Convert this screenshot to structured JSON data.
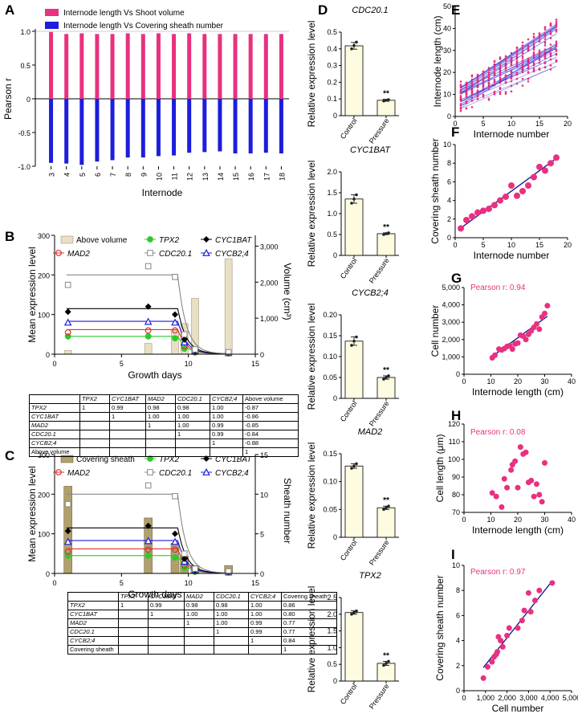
{
  "panel_labels": {
    "A": "A",
    "B": "B",
    "C": "C",
    "D": "D",
    "E": "E",
    "F": "F",
    "G": "G",
    "H": "H",
    "I": "I"
  },
  "colors": {
    "pink": "#e8317f",
    "blue": "#1d1ddc",
    "beige": "#e8dfc4",
    "khaki": "#b0a06e",
    "green": "#2fc82f",
    "red": "#e03030",
    "gray": "#888888",
    "bar_fill": "#fdfbe0",
    "navy": "#1b1b9a"
  },
  "panel_a": {
    "legend": [
      "Internode length Vs Shoot volume",
      "Internode length Vs Covering sheath number"
    ],
    "ylabel": "Pearson r",
    "xlabel": "Internode",
    "yticks": [
      "1.0",
      "0.5",
      "0",
      "-0.5",
      "-1.0"
    ],
    "internodes": [
      "3",
      "4",
      "5",
      "6",
      "7",
      "8",
      "9",
      "10",
      "11",
      "12",
      "13",
      "14",
      "15",
      "16",
      "17",
      "18"
    ]
  },
  "panel_b": {
    "ylabel": "Mean expression level",
    "ylabel2": "Volume (cm³)",
    "xlabel": "Growth days",
    "xticks": [
      "0",
      "5",
      "10",
      "15"
    ],
    "yticks": [
      "0",
      "100",
      "200",
      "300"
    ],
    "y2ticks": [
      "0",
      "1,000",
      "2,000",
      "3,000"
    ],
    "legend": {
      "bar": "Above volume",
      "tpx2": "TPX2",
      "cyc1bat": "CYC1BAT",
      "mad2": "MAD2",
      "cdc20": "CDC20.1",
      "cycb24": "CYCB2;4"
    },
    "table": {
      "header": [
        "",
        "TPX2",
        "CYC1BAT",
        "MAD2",
        "CDC20.1",
        "CYCB2;4",
        "Above volume"
      ],
      "rows": [
        [
          "TPX2",
          "1",
          "0.99",
          "0.98",
          "0.98",
          "1.00",
          "-0.87"
        ],
        [
          "CYC1BAT",
          "",
          "1",
          "1.00",
          "1.00",
          "1.00",
          "-0.86"
        ],
        [
          "MAD2",
          "",
          "",
          "1",
          "1.00",
          "0.99",
          "-0.85"
        ],
        [
          "CDC20.1",
          "",
          "",
          "",
          "1",
          "0.99",
          "-0.84"
        ],
        [
          "CYCB2;4",
          "",
          "",
          "",
          "",
          "1",
          "-0.88"
        ],
        [
          "Above volume",
          "",
          "",
          "",
          "",
          "",
          "1"
        ]
      ]
    }
  },
  "panel_c": {
    "ylabel": "Mean expression level",
    "ylabel2": "Sheath number",
    "xlabel": "Growth days",
    "xticks": [
      "0",
      "5",
      "10",
      "15"
    ],
    "yticks": [
      "0",
      "100",
      "200",
      "300"
    ],
    "y2ticks": [
      "0",
      "5",
      "10",
      "15"
    ],
    "legend": {
      "bar": "Covering sheath",
      "tpx2": "TPX2",
      "cyc1bat": "CYC1BAT",
      "mad2": "MAD2",
      "cdc20": "CDC20.1",
      "cycb24": "CYCB2;4"
    },
    "table": {
      "header": [
        "",
        "TPX2",
        "CYC1BAT",
        "MAD2",
        "CDC20.1",
        "CYCB2;4",
        "Covering sheath"
      ],
      "rows": [
        [
          "TPX2",
          "1",
          "0.99",
          "0.98",
          "0.98",
          "1.00",
          "0.86"
        ],
        [
          "CYC1BAT",
          "",
          "1",
          "1.00",
          "1.00",
          "1.00",
          "0.80"
        ],
        [
          "MAD2",
          "",
          "",
          "1",
          "1.00",
          "0.99",
          "0.77"
        ],
        [
          "CDC20.1",
          "",
          "",
          "",
          "1",
          "0.99",
          "0.77"
        ],
        [
          "CYCB2;4",
          "",
          "",
          "",
          "",
          "1",
          "0.84"
        ],
        [
          "Covering sheath",
          "",
          "",
          "",
          "",
          "",
          "1"
        ]
      ]
    }
  },
  "panel_d": {
    "ylabel": "Relative expression level",
    "categories": [
      "Control",
      "Pressure"
    ],
    "significance": "**",
    "subplots": [
      {
        "title": "CDC20.1",
        "yticks": [
          "0",
          "0.1",
          "0.2",
          "0.3",
          "0.4",
          "0.5"
        ]
      },
      {
        "title": "CYC1BAT",
        "yticks": [
          "0",
          "0.5",
          "1.0",
          "1.5",
          "2.0"
        ]
      },
      {
        "title": "CYCB2;4",
        "yticks": [
          "0",
          "0.05",
          "0.10",
          "0.15",
          "0.20"
        ]
      },
      {
        "title": "MAD2",
        "yticks": [
          "0",
          "0.05",
          "0.10",
          "0.15"
        ]
      },
      {
        "title": "TPX2",
        "yticks": [
          "0",
          "0.5",
          "1.0",
          "1.5",
          "2.0",
          "2.5"
        ]
      }
    ]
  },
  "panel_e": {
    "ylabel": "Internode length (cm)",
    "xlabel": "Internode number",
    "xticks": [
      "0",
      "5",
      "10",
      "15",
      "20"
    ],
    "yticks": [
      "0",
      "10",
      "20",
      "30",
      "40",
      "50"
    ]
  },
  "panel_f": {
    "ylabel": "Covering sheath number",
    "xlabel": "Internode number",
    "xticks": [
      "0",
      "5",
      "10",
      "15",
      "20"
    ],
    "yticks": [
      "0",
      "2",
      "4",
      "6",
      "8",
      "10"
    ]
  },
  "panel_g": {
    "ylabel": "Cell number",
    "xlabel": "Internode length (cm)",
    "annotation": "Pearson r: 0.94",
    "xticks": [
      "0",
      "10",
      "20",
      "30",
      "40"
    ],
    "yticks": [
      "0",
      "1,000",
      "2,000",
      "3,000",
      "4,000",
      "5,000"
    ]
  },
  "panel_h": {
    "ylabel": "Cell length (μm)",
    "xlabel": "Internode length (cm)",
    "annotation": "Pearson r: 0.08",
    "xticks": [
      "0",
      "10",
      "20",
      "30",
      "40"
    ],
    "yticks": [
      "70",
      "80",
      "90",
      "100",
      "110",
      "120"
    ]
  },
  "panel_i": {
    "ylabel": "Covering sheath number",
    "xlabel": "Cell number",
    "annotation": "Pearson r: 0.97",
    "xticks": [
      "0",
      "1,000",
      "2,000",
      "3,000",
      "4,000",
      "5,000"
    ],
    "yticks": [
      "0",
      "2",
      "4",
      "6",
      "8",
      "10"
    ]
  },
  "chart_data": [
    {
      "panel": "A",
      "type": "bar",
      "title": "",
      "xlabel": "Internode",
      "ylabel": "Pearson r",
      "ylim": [
        -1.0,
        1.0
      ],
      "categories": [
        "3",
        "4",
        "5",
        "6",
        "7",
        "8",
        "9",
        "10",
        "11",
        "12",
        "13",
        "14",
        "15",
        "16",
        "17",
        "18"
      ],
      "series": [
        {
          "name": "Internode length Vs Shoot volume",
          "values": [
            0.99,
            0.96,
            0.97,
            0.96,
            0.96,
            0.97,
            0.96,
            0.97,
            0.96,
            0.97,
            0.96,
            0.96,
            0.96,
            0.96,
            0.96,
            0.96
          ]
        },
        {
          "name": "Internode length Vs Covering sheath number",
          "values": [
            -0.95,
            -0.96,
            -0.98,
            -0.93,
            -0.91,
            -0.87,
            -0.87,
            -0.85,
            -0.84,
            -0.8,
            -0.79,
            -0.78,
            -0.81,
            -0.81,
            -0.8,
            -0.81
          ]
        }
      ]
    },
    {
      "panel": "B",
      "type": "line",
      "xlabel": "Growth days",
      "ylabel": "Mean expression level",
      "y2label": "Volume (cm³)",
      "xlim": [
        0,
        15
      ],
      "ylim": [
        0,
        300
      ],
      "y2lim": [
        0,
        3300
      ],
      "bars": {
        "name": "Above volume",
        "x": [
          1,
          7,
          9,
          9.7,
          10.5,
          13
        ],
        "values": [
          100,
          300,
          650,
          850,
          1550,
          2650
        ]
      },
      "series": [
        {
          "name": "TPX2",
          "x": [
            1,
            7,
            9,
            9.7,
            10.5,
            13
          ],
          "values": [
            45,
            45,
            40,
            14,
            4,
            2
          ],
          "plateau": 45
        },
        {
          "name": "MAD2",
          "x": [
            1,
            7,
            9,
            9.7,
            10.5,
            13
          ],
          "values": [
            55,
            60,
            60,
            20,
            6,
            3
          ],
          "plateau": 62
        },
        {
          "name": "CYCB2;4",
          "x": [
            1,
            7,
            9,
            9.7,
            10.5,
            13
          ],
          "values": [
            80,
            82,
            80,
            30,
            8,
            3
          ],
          "plateau": 83
        },
        {
          "name": "CYC1BAT",
          "x": [
            1,
            7,
            9,
            9.7,
            10.5,
            13
          ],
          "values": [
            107,
            120,
            100,
            37,
            8,
            3
          ],
          "plateau": 115
        },
        {
          "name": "CDC20.1",
          "x": [
            1,
            7,
            9,
            9.7,
            10.5,
            13
          ],
          "values": [
            175,
            222,
            195,
            50,
            12,
            5
          ],
          "plateau": 200
        }
      ]
    },
    {
      "panel": "C",
      "type": "line",
      "xlabel": "Growth days",
      "ylabel": "Mean expression level",
      "y2label": "Sheath number",
      "xlim": [
        0,
        15
      ],
      "ylim": [
        0,
        300
      ],
      "y2lim": [
        0,
        15
      ],
      "bars": {
        "name": "Covering sheath",
        "x": [
          1,
          7,
          9,
          9.7,
          10.5,
          13
        ],
        "values": [
          11,
          7,
          3.8,
          2.2,
          1,
          1
        ]
      },
      "series": [
        {
          "name": "TPX2",
          "x": [
            1,
            7,
            9,
            9.7,
            10.5,
            13
          ],
          "values": [
            45,
            45,
            40,
            14,
            4,
            2
          ],
          "plateau": 45
        },
        {
          "name": "MAD2",
          "x": [
            1,
            7,
            9,
            9.7,
            10.5,
            13
          ],
          "values": [
            55,
            60,
            60,
            20,
            6,
            3
          ],
          "plateau": 62
        },
        {
          "name": "CYCB2;4",
          "x": [
            1,
            7,
            9,
            9.7,
            10.5,
            13
          ],
          "values": [
            80,
            82,
            80,
            30,
            8,
            3
          ],
          "plateau": 83
        },
        {
          "name": "CYC1BAT",
          "x": [
            1,
            7,
            9,
            9.7,
            10.5,
            13
          ],
          "values": [
            107,
            120,
            100,
            37,
            8,
            3
          ],
          "plateau": 115
        },
        {
          "name": "CDC20.1",
          "x": [
            1,
            7,
            9,
            9.7,
            10.5,
            13
          ],
          "values": [
            175,
            222,
            195,
            50,
            12,
            5
          ],
          "plateau": 200
        }
      ]
    },
    {
      "panel": "D1",
      "type": "bar",
      "title": "CDC20.1",
      "categories": [
        "Control",
        "Pressure"
      ],
      "values": [
        0.418,
        0.092
      ],
      "errors": [
        0.02,
        0.006
      ],
      "points": [
        [
          0.4,
          0.42,
          0.44
        ],
        [
          0.088,
          0.092,
          0.096
        ]
      ],
      "ylim": [
        0,
        0.5
      ]
    },
    {
      "panel": "D2",
      "type": "bar",
      "title": "CYC1BAT",
      "categories": [
        "Control",
        "Pressure"
      ],
      "values": [
        1.35,
        0.52
      ],
      "errors": [
        0.1,
        0.02
      ],
      "points": [
        [
          1.25,
          1.35,
          1.45
        ],
        [
          0.5,
          0.52,
          0.54
        ]
      ],
      "ylim": [
        0,
        2.0
      ]
    },
    {
      "panel": "D3",
      "type": "bar",
      "title": "CYCB2;4",
      "categories": [
        "Control",
        "Pressure"
      ],
      "values": [
        0.137,
        0.05
      ],
      "errors": [
        0.01,
        0.004
      ],
      "points": [
        [
          0.127,
          0.137,
          0.147
        ],
        [
          0.046,
          0.05,
          0.054
        ]
      ],
      "ylim": [
        0,
        0.2
      ]
    },
    {
      "panel": "D4",
      "type": "bar",
      "title": "MAD2",
      "categories": [
        "Control",
        "Pressure"
      ],
      "values": [
        0.128,
        0.053
      ],
      "errors": [
        0.004,
        0.003
      ],
      "points": [
        [
          0.124,
          0.128,
          0.132
        ],
        [
          0.05,
          0.053,
          0.056
        ]
      ],
      "ylim": [
        0,
        0.15
      ]
    },
    {
      "panel": "D5",
      "type": "bar",
      "title": "TPX2",
      "categories": [
        "Control",
        "Pressure"
      ],
      "values": [
        2.05,
        0.53
      ],
      "errors": [
        0.05,
        0.06
      ],
      "points": [
        [
          2.0,
          2.05,
          2.1
        ],
        [
          0.47,
          0.53,
          0.59
        ]
      ],
      "ylim": [
        0,
        2.5
      ]
    },
    {
      "panel": "E",
      "type": "scatter",
      "xlabel": "Internode number",
      "ylabel": "Internode length (cm)",
      "xlim": [
        0,
        20
      ],
      "ylim": [
        0,
        50
      ],
      "n_shoots": 25,
      "x_range": [
        1,
        18
      ],
      "fit_intercept_range": [
        2,
        12
      ],
      "fit_slope_range": [
        1.0,
        1.8
      ]
    },
    {
      "panel": "F",
      "type": "scatter",
      "xlabel": "Internode number",
      "ylabel": "Covering sheath number",
      "xlim": [
        0,
        20
      ],
      "ylim": [
        0,
        10
      ],
      "x": [
        1,
        2,
        3,
        4,
        5,
        6,
        7,
        8,
        9,
        10,
        11,
        12,
        13,
        14,
        15,
        16,
        17,
        18
      ],
      "y": [
        1.0,
        1.9,
        2.3,
        2.7,
        2.9,
        3.1,
        3.5,
        4.0,
        4.4,
        5.6,
        4.5,
        5.0,
        5.6,
        6.5,
        7.6,
        7.2,
        8.0,
        8.6
      ],
      "fit": {
        "slope": 0.44,
        "intercept": 0.6
      }
    },
    {
      "panel": "G",
      "type": "scatter",
      "xlabel": "Internode length (cm)",
      "ylabel": "Cell number",
      "xlim": [
        0,
        40
      ],
      "ylim": [
        0,
        5000
      ],
      "annotation": "Pearson r: 0.94",
      "x": [
        10.5,
        11.5,
        13,
        14,
        15,
        16,
        17,
        18,
        19,
        20,
        21,
        22,
        23,
        24,
        25,
        26,
        27,
        28,
        29,
        30,
        31
      ],
      "y": [
        950,
        1100,
        1450,
        1400,
        1480,
        1600,
        1650,
        1450,
        1750,
        1800,
        2250,
        2200,
        2000,
        2300,
        2500,
        2700,
        2900,
        2600,
        3300,
        3500,
        3950
      ],
      "fit": {
        "slope": 113,
        "intercept": -160
      }
    },
    {
      "panel": "H",
      "type": "scatter",
      "xlabel": "Internode length (cm)",
      "ylabel": "Cell length (μm)",
      "xlim": [
        0,
        40
      ],
      "ylim": [
        70,
        120
      ],
      "annotation": "Pearson r: 0.08",
      "x": [
        10.5,
        12,
        14,
        15,
        16,
        17.5,
        18,
        19,
        20,
        21,
        22,
        23,
        24,
        25,
        26,
        27,
        28,
        29,
        30
      ],
      "y": [
        81,
        79,
        73,
        89,
        84,
        94,
        97,
        99,
        84,
        107,
        103,
        104,
        87,
        88,
        79,
        86,
        80,
        76,
        98
      ]
    },
    {
      "panel": "I",
      "type": "scatter",
      "xlabel": "Cell number",
      "ylabel": "Covering sheath number",
      "xlim": [
        0,
        5000
      ],
      "ylim": [
        0,
        10
      ],
      "annotation": "Pearson r: 0.97",
      "x": [
        900,
        1100,
        1300,
        1400,
        1500,
        1550,
        1600,
        1700,
        1800,
        2000,
        2100,
        2500,
        2700,
        2800,
        3000,
        3100,
        3300,
        3500,
        4100
      ],
      "y": [
        1.0,
        1.9,
        2.3,
        2.7,
        2.9,
        3.1,
        4.3,
        4.0,
        3.5,
        4.4,
        5.0,
        5.0,
        5.6,
        6.4,
        7.8,
        6.3,
        7.2,
        8.0,
        8.6
      ],
      "fit": {
        "slope": 0.00216,
        "intercept": -0.1
      }
    }
  ]
}
